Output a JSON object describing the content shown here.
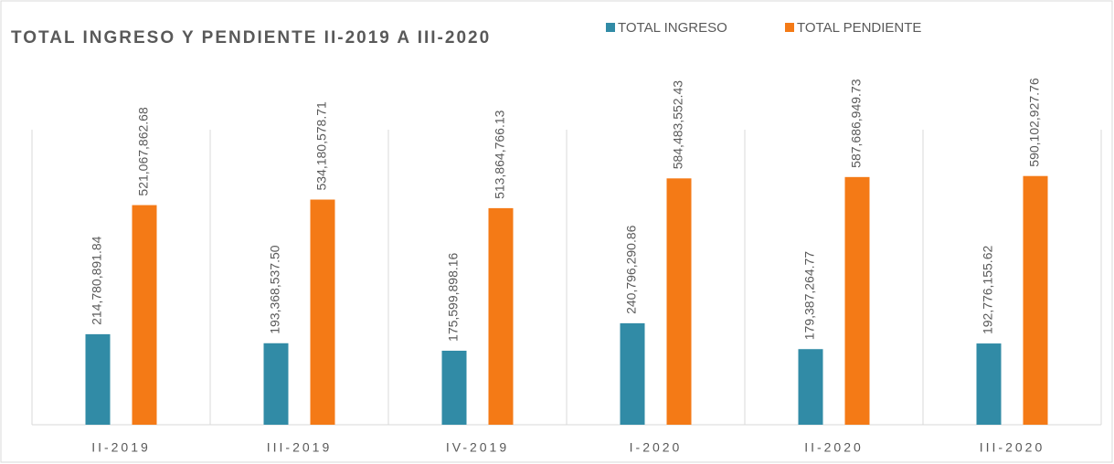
{
  "chart_data": {
    "type": "bar",
    "title": "TOTAL INGRESO Y PENDIENTE II-2019 A III-2020",
    "categories": [
      "II-2019",
      "III-2019",
      "IV-2019",
      "I-2020",
      "II-2020",
      "III-2020"
    ],
    "series": [
      {
        "name": "TOTAL INGRESO",
        "color": "#318ba6",
        "values": [
          214780891.84,
          193368537.5,
          175599898.16,
          240796290.86,
          179387264.77,
          192776155.62
        ],
        "value_labels": [
          "214,780,891.84",
          "193,368,537.50",
          "175,599,898.16",
          "240,796,290.86",
          "179,387,264.77",
          "192,776,155.62"
        ]
      },
      {
        "name": "TOTAL PENDIENTE",
        "color": "#f47a16",
        "values": [
          521067862.68,
          534180578.71,
          513864766.13,
          584483552.43,
          587686949.73,
          590102927.76
        ],
        "value_labels": [
          "521,067,862.68",
          "534,180,578.71",
          "513,864,766.13",
          "584,483,552.43",
          "587,686,949.73",
          "590,102,927.76"
        ]
      }
    ],
    "ylim": [
      0,
      700000000
    ],
    "legend": "top"
  }
}
